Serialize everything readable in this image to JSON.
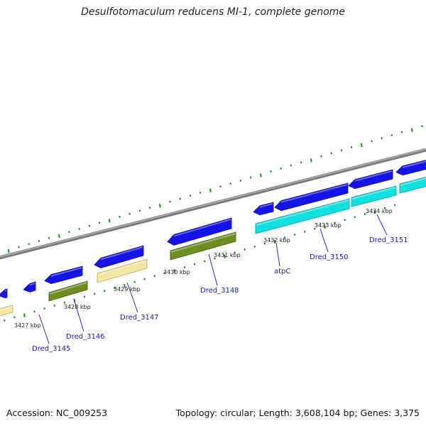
{
  "title": "Desulfotomaculum reducens MI-1, complete genome",
  "footer": {
    "accession": "Accession: NC_009253",
    "summary": "Topology: circular; Length: 3,608,104 bp; Genes: 3,375"
  },
  "colors": {
    "background": "#ffffff",
    "backbone": "#8c8c8c",
    "strand_top": "#1414e6",
    "ticks": "#1d8a1d",
    "scale_label": "#222222",
    "gene_label": "#1a1aa6",
    "leader": "#2a2ac0",
    "feature_khaki": "#f3e7a3",
    "feature_olive": "#6d8f22",
    "feature_cyan": "#12e0e0"
  },
  "scale_labels": [
    "3427 kbp",
    "3428 kbp",
    "3429 kbp",
    "3430 kbp",
    "3431 kbp",
    "3432 kbp",
    "3433 kbp",
    "3434 kbp"
  ],
  "gene_labels": [
    "Dred_3145",
    "Dred_3146",
    "Dred_3147",
    "Dred_3148",
    "atpC",
    "Dred_3150",
    "Dred_3151"
  ],
  "features": [
    {
      "strand": "top",
      "color": "strand_top"
    },
    {
      "strand": "top",
      "color": "strand_top"
    },
    {
      "strand": "top",
      "color": "strand_top"
    },
    {
      "strand": "top",
      "color": "strand_top"
    },
    {
      "strand": "top",
      "color": "strand_top"
    },
    {
      "strand": "top",
      "color": "strand_top"
    },
    {
      "strand": "top",
      "color": "strand_top"
    },
    {
      "strand": "top",
      "color": "strand_top"
    },
    {
      "strand": "top",
      "color": "strand_top"
    },
    {
      "strand": "bottom",
      "color": "feature_khaki"
    },
    {
      "strand": "bottom",
      "color": "feature_olive"
    },
    {
      "strand": "bottom",
      "color": "feature_khaki"
    },
    {
      "strand": "bottom",
      "color": "feature_olive"
    },
    {
      "strand": "bottom",
      "color": "feature_cyan"
    },
    {
      "strand": "bottom",
      "color": "feature_cyan"
    },
    {
      "strand": "bottom",
      "color": "feature_cyan"
    }
  ]
}
